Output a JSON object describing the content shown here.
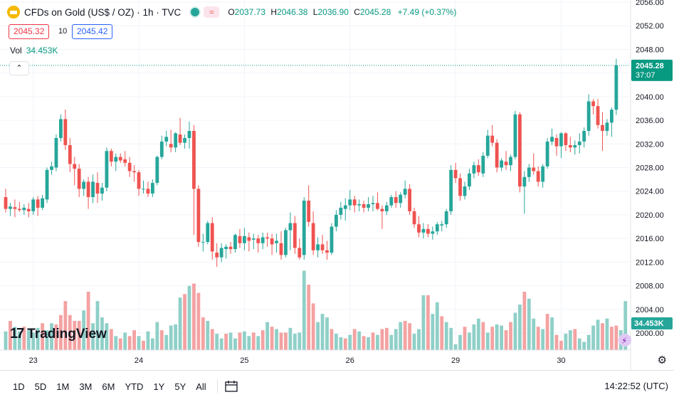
{
  "header": {
    "title": "CFDs on Gold (US$ / OZ) · 1h · TVC",
    "open_label": "O",
    "open": "2037.73",
    "high_label": "H",
    "high": "2046.38",
    "low_label": "L",
    "low": "2036.90",
    "close_label": "C",
    "close": "2045.28",
    "change": "+7.49 (+0.37%)",
    "bid": "2045.32",
    "spread": "10",
    "ask": "2045.42",
    "vol_label": "Vol",
    "vol_value": "34.453K",
    "wave_glyph": "≈",
    "collapse_glyph": "⌃"
  },
  "watermark": {
    "logo": "17",
    "text": "TradingView"
  },
  "chart_data": {
    "type": "candlestick",
    "title": "CFDs on Gold (US$ / OZ) · 1h · TVC",
    "y_ticks": [
      "2056.00",
      "2052.00",
      "2048.00",
      "2044.00",
      "2040.00",
      "2036.00",
      "2032.00",
      "2028.00",
      "2024.00",
      "2020.00",
      "2016.00",
      "2012.00",
      "2008.00",
      "2004.00",
      "2000.00"
    ],
    "y_tick_values": [
      2056,
      2052,
      2048,
      2044,
      2040,
      2036,
      2032,
      2028,
      2024,
      2020,
      2016,
      2012,
      2008,
      2004,
      2000
    ],
    "ylim": [
      1998,
      2057
    ],
    "x_ticks": [
      "23",
      "24",
      "25",
      "26",
      "29",
      "30"
    ],
    "x_tick_bar_index": [
      6,
      29,
      52,
      75,
      98,
      121
    ],
    "last_price_label": "2045.28",
    "countdown_label": "37:07",
    "last_volume_label": "34.453K",
    "colors": {
      "up": "#26a69a",
      "down": "#ef5350",
      "up_vol": "#8fd0c8",
      "down_vol": "#f4a2a2",
      "last_price": "#089981",
      "grid": "#f0f3fa"
    },
    "ohlc": [
      [
        2023.0,
        2024.4,
        2020.4,
        2021.0
      ],
      [
        2021.0,
        2022.0,
        2019.8,
        2021.4
      ],
      [
        2021.3,
        2022.6,
        2019.6,
        2021.0
      ],
      [
        2021.0,
        2022.2,
        2020.5,
        2020.8
      ],
      [
        2020.8,
        2021.8,
        2020.0,
        2021.2
      ],
      [
        2021.0,
        2022.0,
        2019.6,
        2020.6
      ],
      [
        2020.6,
        2023.0,
        2020.0,
        2022.6
      ],
      [
        2022.6,
        2023.2,
        2019.8,
        2021.2
      ],
      [
        2021.2,
        2023.4,
        2020.8,
        2022.8
      ],
      [
        2022.6,
        2028.0,
        2022.0,
        2027.6
      ],
      [
        2027.6,
        2029.0,
        2026.8,
        2028.2
      ],
      [
        2028.0,
        2033.6,
        2027.4,
        2033.0
      ],
      [
        2033.0,
        2037.0,
        2032.4,
        2036.2
      ],
      [
        2036.2,
        2037.8,
        2031.0,
        2031.8
      ],
      [
        2031.8,
        2033.0,
        2027.2,
        2028.6
      ],
      [
        2028.6,
        2029.8,
        2025.0,
        2027.8
      ],
      [
        2027.8,
        2028.6,
        2023.0,
        2024.4
      ],
      [
        2024.4,
        2026.0,
        2023.2,
        2025.6
      ],
      [
        2025.6,
        2026.4,
        2021.0,
        2023.0
      ],
      [
        2023.0,
        2026.8,
        2022.0,
        2025.6
      ],
      [
        2025.4,
        2027.2,
        2022.0,
        2023.6
      ],
      [
        2023.6,
        2025.4,
        2022.4,
        2024.6
      ],
      [
        2024.6,
        2031.4,
        2024.0,
        2030.8
      ],
      [
        2030.8,
        2031.2,
        2028.2,
        2029.0
      ],
      [
        2029.0,
        2030.4,
        2027.4,
        2029.8
      ],
      [
        2029.8,
        2030.4,
        2028.8,
        2029.2
      ],
      [
        2029.4,
        2030.8,
        2028.2,
        2028.8
      ],
      [
        2028.8,
        2029.8,
        2026.4,
        2027.4
      ],
      [
        2027.4,
        2028.4,
        2025.6,
        2027.2
      ],
      [
        2027.2,
        2027.6,
        2023.2,
        2024.4
      ],
      [
        2024.4,
        2025.8,
        2023.6,
        2024.4
      ],
      [
        2024.4,
        2025.6,
        2023.0,
        2023.6
      ],
      [
        2023.6,
        2026.0,
        2023.0,
        2025.4
      ],
      [
        2025.4,
        2030.0,
        2025.0,
        2029.8
      ],
      [
        2029.8,
        2033.4,
        2029.4,
        2032.4
      ],
      [
        2032.4,
        2034.2,
        2031.6,
        2033.2
      ],
      [
        2032.0,
        2034.4,
        2030.6,
        2031.4
      ],
      [
        2031.4,
        2034.0,
        2030.6,
        2033.8
      ],
      [
        2033.6,
        2036.4,
        2031.8,
        2032.2
      ],
      [
        2032.2,
        2033.6,
        2031.2,
        2033.0
      ],
      [
        2033.0,
        2035.8,
        2031.2,
        2034.2
      ],
      [
        2034.2,
        2035.2,
        2016.6,
        2024.4
      ],
      [
        2024.4,
        2025.0,
        2014.6,
        2015.4
      ],
      [
        2015.4,
        2016.8,
        2013.8,
        2015.4
      ],
      [
        2015.4,
        2019.0,
        2015.0,
        2018.6
      ],
      [
        2018.6,
        2019.6,
        2012.4,
        2013.8
      ],
      [
        2013.6,
        2015.2,
        2011.2,
        2012.8
      ],
      [
        2012.8,
        2015.2,
        2012.0,
        2014.4
      ],
      [
        2014.2,
        2015.0,
        2012.6,
        2014.6
      ],
      [
        2014.6,
        2015.4,
        2013.4,
        2014.2
      ],
      [
        2014.2,
        2016.8,
        2013.6,
        2016.6
      ],
      [
        2016.4,
        2017.6,
        2014.4,
        2015.2
      ],
      [
        2015.2,
        2017.8,
        2014.0,
        2016.4
      ],
      [
        2016.2,
        2017.0,
        2013.8,
        2015.6
      ],
      [
        2015.8,
        2016.8,
        2014.2,
        2016.0
      ],
      [
        2016.0,
        2016.6,
        2013.6,
        2015.2
      ],
      [
        2015.2,
        2017.0,
        2014.2,
        2016.2
      ],
      [
        2016.2,
        2017.0,
        2014.6,
        2016.0
      ],
      [
        2016.0,
        2016.8,
        2013.2,
        2015.0
      ],
      [
        2015.2,
        2016.8,
        2013.6,
        2015.6
      ],
      [
        2015.2,
        2017.2,
        2012.4,
        2013.2
      ],
      [
        2013.2,
        2017.8,
        2012.8,
        2017.4
      ],
      [
        2017.4,
        2020.4,
        2014.0,
        2018.6
      ],
      [
        2018.6,
        2019.8,
        2013.4,
        2014.4
      ],
      [
        2014.4,
        2016.0,
        2012.4,
        2012.8
      ],
      [
        2013.2,
        2023.0,
        2012.4,
        2022.4
      ],
      [
        2022.4,
        2025.0,
        2018.0,
        2018.8
      ],
      [
        2018.6,
        2020.6,
        2013.2,
        2014.0
      ],
      [
        2014.0,
        2016.2,
        2012.8,
        2015.0
      ],
      [
        2015.0,
        2016.6,
        2013.4,
        2014.0
      ],
      [
        2014.0,
        2015.6,
        2012.4,
        2013.6
      ],
      [
        2013.6,
        2018.6,
        2013.2,
        2018.0
      ],
      [
        2018.0,
        2020.8,
        2017.2,
        2020.0
      ],
      [
        2020.0,
        2022.2,
        2019.2,
        2021.2
      ],
      [
        2021.0,
        2022.8,
        2019.0,
        2021.6
      ],
      [
        2021.6,
        2024.2,
        2020.8,
        2022.6
      ],
      [
        2022.6,
        2023.2,
        2020.4,
        2021.6
      ],
      [
        2021.6,
        2022.6,
        2020.6,
        2021.8
      ],
      [
        2021.8,
        2022.4,
        2020.4,
        2021.2
      ],
      [
        2021.2,
        2023.0,
        2020.6,
        2021.8
      ],
      [
        2021.8,
        2023.2,
        2020.6,
        2022.0
      ],
      [
        2022.0,
        2023.8,
        2020.8,
        2021.0
      ],
      [
        2021.0,
        2021.6,
        2017.6,
        2020.6
      ],
      [
        2020.6,
        2022.2,
        2020.0,
        2021.6
      ],
      [
        2021.6,
        2023.4,
        2021.2,
        2023.0
      ],
      [
        2023.0,
        2024.0,
        2021.2,
        2022.0
      ],
      [
        2022.0,
        2023.8,
        2021.2,
        2023.4
      ],
      [
        2023.4,
        2025.8,
        2022.8,
        2024.4
      ],
      [
        2024.4,
        2025.2,
        2020.0,
        2020.6
      ],
      [
        2020.6,
        2021.2,
        2017.8,
        2018.4
      ],
      [
        2018.4,
        2019.8,
        2016.2,
        2017.0
      ],
      [
        2017.0,
        2018.6,
        2016.0,
        2017.6
      ],
      [
        2017.6,
        2018.4,
        2016.2,
        2016.8
      ],
      [
        2016.8,
        2018.0,
        2015.8,
        2017.2
      ],
      [
        2017.2,
        2018.8,
        2016.6,
        2018.4
      ],
      [
        2018.2,
        2019.0,
        2017.2,
        2018.4
      ],
      [
        2018.4,
        2021.0,
        2017.8,
        2020.6
      ],
      [
        2020.6,
        2028.4,
        2020.0,
        2027.6
      ],
      [
        2027.6,
        2028.8,
        2025.4,
        2026.2
      ],
      [
        2026.2,
        2027.0,
        2022.4,
        2023.2
      ],
      [
        2023.2,
        2025.6,
        2022.6,
        2024.8
      ],
      [
        2024.8,
        2027.8,
        2024.2,
        2027.0
      ],
      [
        2027.0,
        2029.0,
        2026.2,
        2028.4
      ],
      [
        2028.4,
        2029.4,
        2026.6,
        2027.2
      ],
      [
        2027.0,
        2030.6,
        2026.4,
        2030.0
      ],
      [
        2030.0,
        2034.4,
        2029.6,
        2033.4
      ],
      [
        2033.4,
        2035.2,
        2031.6,
        2032.2
      ],
      [
        2032.2,
        2032.8,
        2027.2,
        2028.0
      ],
      [
        2028.0,
        2029.6,
        2027.4,
        2029.2
      ],
      [
        2029.0,
        2030.8,
        2027.6,
        2028.4
      ],
      [
        2028.4,
        2030.2,
        2027.4,
        2029.8
      ],
      [
        2029.8,
        2037.6,
        2029.4,
        2037.0
      ],
      [
        2037.0,
        2037.4,
        2023.8,
        2024.8
      ],
      [
        2024.8,
        2027.4,
        2020.2,
        2026.4
      ],
      [
        2026.4,
        2028.6,
        2025.6,
        2028.0
      ],
      [
        2028.0,
        2030.4,
        2026.8,
        2027.4
      ],
      [
        2027.4,
        2028.2,
        2024.8,
        2025.6
      ],
      [
        2025.6,
        2028.6,
        2024.6,
        2028.2
      ],
      [
        2028.2,
        2033.0,
        2027.8,
        2032.4
      ],
      [
        2032.4,
        2034.6,
        2031.8,
        2033.2
      ],
      [
        2033.0,
        2033.6,
        2030.0,
        2031.6
      ],
      [
        2031.6,
        2034.0,
        2029.6,
        2033.8
      ],
      [
        2033.8,
        2034.0,
        2030.8,
        2031.8
      ],
      [
        2031.8,
        2033.2,
        2030.6,
        2031.4
      ],
      [
        2031.4,
        2032.6,
        2030.2,
        2031.8
      ],
      [
        2031.8,
        2033.8,
        2030.4,
        2032.4
      ],
      [
        2032.4,
        2034.8,
        2031.4,
        2034.2
      ],
      [
        2034.2,
        2040.4,
        2033.4,
        2039.2
      ],
      [
        2039.2,
        2039.6,
        2037.0,
        2038.4
      ],
      [
        2038.4,
        2039.6,
        2034.6,
        2035.2
      ],
      [
        2035.2,
        2037.4,
        2030.8,
        2034.2
      ],
      [
        2034.2,
        2036.2,
        2033.4,
        2035.6
      ],
      [
        2035.6,
        2038.2,
        2033.2,
        2037.8
      ],
      [
        2037.8,
        2046.4,
        2036.9,
        2045.3
      ]
    ],
    "volume": [
      [
        3.2,
        "up"
      ],
      [
        5.0,
        "down"
      ],
      [
        4.0,
        "up"
      ],
      [
        3.2,
        "up"
      ],
      [
        4.0,
        "down"
      ],
      [
        3.4,
        "up"
      ],
      [
        3.0,
        "up"
      ],
      [
        3.8,
        "up"
      ],
      [
        4.6,
        "down"
      ],
      [
        3.4,
        "up"
      ],
      [
        4.6,
        "up"
      ],
      [
        4.4,
        "down"
      ],
      [
        6.0,
        "down"
      ],
      [
        8.4,
        "down"
      ],
      [
        6.0,
        "down"
      ],
      [
        5.0,
        "down"
      ],
      [
        5.0,
        "down"
      ],
      [
        6.8,
        "up"
      ],
      [
        10.0,
        "down"
      ],
      [
        4.6,
        "up"
      ],
      [
        8.4,
        "up"
      ],
      [
        5.6,
        "up"
      ],
      [
        4.6,
        "up"
      ],
      [
        3.6,
        "down"
      ],
      [
        2.4,
        "up"
      ],
      [
        2.0,
        "down"
      ],
      [
        3.0,
        "up"
      ],
      [
        2.4,
        "down"
      ],
      [
        3.4,
        "down"
      ],
      [
        2.4,
        "up"
      ],
      [
        1.6,
        "down"
      ],
      [
        3.2,
        "up"
      ],
      [
        2.0,
        "up"
      ],
      [
        4.8,
        "up"
      ],
      [
        3.4,
        "down"
      ],
      [
        2.6,
        "up"
      ],
      [
        4.2,
        "up"
      ],
      [
        4.4,
        "up"
      ],
      [
        9.0,
        "up"
      ],
      [
        9.6,
        "down"
      ],
      [
        11.0,
        "up"
      ],
      [
        11.4,
        "down"
      ],
      [
        9.8,
        "down"
      ],
      [
        5.6,
        "down"
      ],
      [
        5.0,
        "up"
      ],
      [
        3.6,
        "down"
      ],
      [
        2.8,
        "up"
      ],
      [
        2.0,
        "up"
      ],
      [
        2.8,
        "down"
      ],
      [
        3.0,
        "up"
      ],
      [
        2.0,
        "up"
      ],
      [
        3.0,
        "down"
      ],
      [
        3.2,
        "up"
      ],
      [
        2.4,
        "up"
      ],
      [
        3.0,
        "down"
      ],
      [
        2.4,
        "up"
      ],
      [
        3.4,
        "down"
      ],
      [
        4.8,
        "up"
      ],
      [
        4.0,
        "down"
      ],
      [
        3.6,
        "up"
      ],
      [
        3.0,
        "down"
      ],
      [
        3.0,
        "down"
      ],
      [
        3.8,
        "up"
      ],
      [
        2.8,
        "up"
      ],
      [
        3.0,
        "up"
      ],
      [
        13.6,
        "up"
      ],
      [
        11.2,
        "down"
      ],
      [
        8.0,
        "down"
      ],
      [
        4.8,
        "up"
      ],
      [
        6.2,
        "up"
      ],
      [
        5.6,
        "up"
      ],
      [
        3.6,
        "down"
      ],
      [
        2.8,
        "up"
      ],
      [
        2.2,
        "up"
      ],
      [
        2.0,
        "down"
      ],
      [
        2.6,
        "up"
      ],
      [
        3.6,
        "down"
      ],
      [
        3.2,
        "up"
      ],
      [
        2.4,
        "down"
      ],
      [
        2.2,
        "up"
      ],
      [
        3.0,
        "down"
      ],
      [
        2.6,
        "up"
      ],
      [
        3.6,
        "down"
      ],
      [
        3.8,
        "down"
      ],
      [
        2.6,
        "up"
      ],
      [
        3.6,
        "up"
      ],
      [
        4.8,
        "up"
      ],
      [
        5.0,
        "down"
      ],
      [
        4.6,
        "down"
      ],
      [
        2.8,
        "up"
      ],
      [
        3.6,
        "up"
      ],
      [
        9.4,
        "up"
      ],
      [
        9.4,
        "down"
      ],
      [
        6.2,
        "up"
      ],
      [
        8.2,
        "up"
      ],
      [
        5.8,
        "down"
      ],
      [
        4.8,
        "up"
      ],
      [
        3.8,
        "up"
      ],
      [
        1.0,
        "up"
      ],
      [
        2.6,
        "up"
      ],
      [
        4.0,
        "down"
      ],
      [
        3.0,
        "up"
      ],
      [
        4.4,
        "up"
      ],
      [
        5.4,
        "up"
      ],
      [
        4.8,
        "down"
      ],
      [
        3.0,
        "up"
      ],
      [
        4.0,
        "down"
      ],
      [
        4.4,
        "up"
      ],
      [
        4.2,
        "up"
      ],
      [
        3.4,
        "down"
      ],
      [
        4.8,
        "down"
      ],
      [
        6.4,
        "up"
      ],
      [
        7.8,
        "up"
      ],
      [
        10.0,
        "down"
      ],
      [
        8.8,
        "up"
      ],
      [
        5.4,
        "up"
      ],
      [
        4.0,
        "down"
      ],
      [
        3.6,
        "up"
      ],
      [
        6.2,
        "down"
      ],
      [
        5.6,
        "up"
      ],
      [
        2.6,
        "down"
      ],
      [
        1.6,
        "down"
      ],
      [
        2.8,
        "up"
      ],
      [
        3.4,
        "up"
      ],
      [
        3.6,
        "down"
      ],
      [
        2.0,
        "up"
      ],
      [
        1.4,
        "up"
      ],
      [
        2.6,
        "up"
      ],
      [
        4.2,
        "up"
      ],
      [
        5.2,
        "up"
      ],
      [
        4.6,
        "down"
      ],
      [
        5.4,
        "up"
      ],
      [
        4.0,
        "down"
      ],
      [
        4.2,
        "down"
      ],
      [
        3.4,
        "up"
      ],
      [
        8.4,
        "up"
      ]
    ]
  },
  "bottom": {
    "ranges": [
      "1D",
      "5D",
      "1M",
      "3M",
      "6M",
      "YTD",
      "1Y",
      "5Y",
      "All"
    ],
    "clock": "14:22:52 (UTC)"
  }
}
